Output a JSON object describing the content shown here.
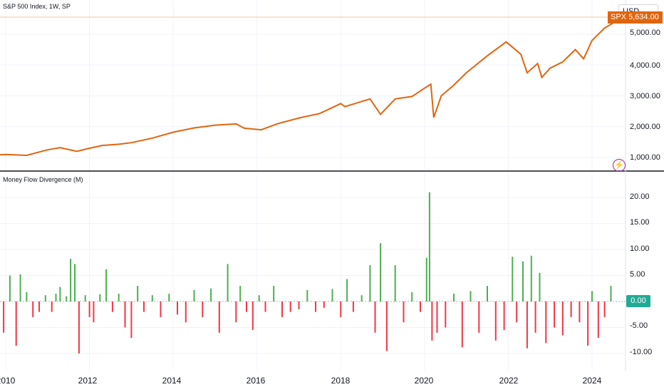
{
  "header": {
    "symbol_title": "S&P 500 Index, 1W, SP",
    "currency": "USD",
    "spx_tag": "SPX",
    "spx_value": "5,634.00"
  },
  "main_pane": {
    "y_ticks": [
      "5,000.00",
      "4,000.00",
      "3,000.00",
      "2,000.00",
      "1,000.00"
    ],
    "price_line_color": "#e0650e",
    "alert_icon": "lightning-icon"
  },
  "indicator_pane": {
    "title": "Money Flow Divergence (M)",
    "y_ticks": [
      "20.00",
      "15.00",
      "10.00",
      "5.00",
      "-5.00",
      "-10.00"
    ],
    "zero_label": "0.00",
    "positive_color": "#4caf50",
    "negative_color": "#f23645"
  },
  "x_axis": {
    "ticks": [
      "2010",
      "2012",
      "2014",
      "2016",
      "2018",
      "2020",
      "2022",
      "2024"
    ]
  },
  "chart_data": [
    {
      "type": "line",
      "series": [
        {
          "name": "SPX",
          "x": [
            2009.5,
            2010.0,
            2010.5,
            2011.0,
            2011.3,
            2011.7,
            2012.0,
            2012.3,
            2012.7,
            2013.0,
            2013.5,
            2014.0,
            2014.5,
            2015.0,
            2015.5,
            2015.7,
            2016.1,
            2016.5,
            2017.0,
            2017.5,
            2018.0,
            2018.1,
            2018.7,
            2018.95,
            2019.3,
            2019.7,
            2020.0,
            2020.15,
            2020.22,
            2020.4,
            2020.7,
            2021.0,
            2021.5,
            2021.95,
            2022.3,
            2022.45,
            2022.7,
            2022.8,
            2023.0,
            2023.3,
            2023.6,
            2023.8,
            2024.0,
            2024.3,
            2024.55
          ],
          "y": [
            1050,
            1100,
            1070,
            1250,
            1320,
            1200,
            1300,
            1390,
            1430,
            1480,
            1630,
            1820,
            1960,
            2050,
            2090,
            1950,
            1900,
            2100,
            2280,
            2430,
            2750,
            2650,
            2900,
            2400,
            2900,
            2980,
            3250,
            3380,
            2300,
            3000,
            3350,
            3750,
            4300,
            4750,
            4350,
            3750,
            4050,
            3600,
            3900,
            4100,
            4500,
            4200,
            4800,
            5200,
            5400
          ]
        }
      ],
      "ylim": [
        700,
        5600
      ]
    },
    {
      "type": "bar",
      "title": "Money Flow Divergence (M)",
      "x": [
        2009.45,
        2009.55,
        2009.7,
        2009.8,
        2009.95,
        2010.1,
        2010.25,
        2010.35,
        2010.5,
        2010.65,
        2010.8,
        2010.95,
        2011.1,
        2011.2,
        2011.3,
        2011.45,
        2011.55,
        2011.65,
        2011.75,
        2011.9,
        2012.0,
        2012.1,
        2012.25,
        2012.4,
        2012.55,
        2012.7,
        2012.85,
        2013.0,
        2013.15,
        2013.3,
        2013.5,
        2013.7,
        2013.9,
        2014.1,
        2014.3,
        2014.5,
        2014.7,
        2014.9,
        2015.1,
        2015.3,
        2015.5,
        2015.6,
        2015.75,
        2015.9,
        2016.05,
        2016.2,
        2016.4,
        2016.6,
        2016.8,
        2017.0,
        2017.2,
        2017.4,
        2017.6,
        2017.8,
        2018.0,
        2018.15,
        2018.3,
        2018.5,
        2018.7,
        2018.82,
        2018.95,
        2019.1,
        2019.3,
        2019.5,
        2019.7,
        2019.9,
        2020.05,
        2020.12,
        2020.18,
        2020.3,
        2020.5,
        2020.7,
        2020.9,
        2021.1,
        2021.3,
        2021.5,
        2021.7,
        2021.9,
        2022.1,
        2022.2,
        2022.35,
        2022.45,
        2022.55,
        2022.65,
        2022.75,
        2022.9,
        2023.1,
        2023.3,
        2023.5,
        2023.7,
        2023.9,
        2024.0,
        2024.15,
        2024.3,
        2024.45
      ],
      "values": [
        -5,
        3.6,
        -3,
        8.2,
        -6,
        5,
        -8.5,
        5.2,
        1.8,
        -3,
        -2,
        1.2,
        -2,
        1.5,
        2.8,
        1,
        8.2,
        7.2,
        -10,
        1.2,
        -3,
        -4,
        1.4,
        6.2,
        -2,
        1.5,
        -5,
        -7,
        3,
        -2,
        1.2,
        -3,
        1.5,
        -2.5,
        -4,
        2.2,
        -3,
        2.5,
        -6,
        7.2,
        -4,
        3,
        -2,
        -5.5,
        1.2,
        -2,
        3,
        -3,
        -2,
        -1.5,
        2.2,
        -2,
        -1.2,
        2.4,
        -3,
        4.3,
        -2,
        1.2,
        7,
        -6,
        11.2,
        -9.5,
        7,
        -4,
        1.8,
        -2,
        8.4,
        21,
        -7.5,
        -6,
        -5,
        1.5,
        -8.8,
        2,
        -6,
        3,
        -7.5,
        -5.5,
        8.6,
        -4,
        7.7,
        -9,
        8.8,
        -6,
        5.5,
        -8,
        -5,
        -6.5,
        -3,
        -4,
        -8.5,
        2,
        -7,
        -3,
        3
      ]
    }
  ]
}
